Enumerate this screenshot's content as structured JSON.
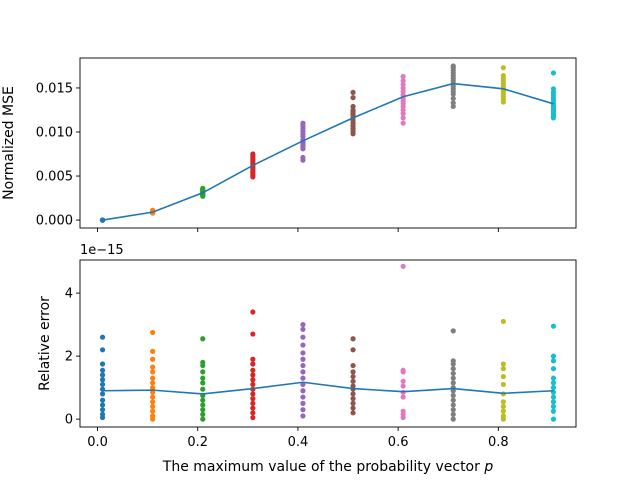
{
  "chart_data": [
    {
      "type": "scatter",
      "name": "top",
      "ylabel": "Normalized MSE",
      "xlabel": "",
      "xlim": [
        -0.035,
        0.955
      ],
      "ylim": [
        -0.0009,
        0.0184
      ],
      "yticks": [
        0.0,
        0.005,
        0.01,
        0.015
      ],
      "ytick_labels": [
        "0.000",
        "0.005",
        "0.010",
        "0.015"
      ],
      "xticks": [
        0.0,
        0.2,
        0.4,
        0.6,
        0.8
      ],
      "line": {
        "x": [
          0.01,
          0.11,
          0.21,
          0.31,
          0.41,
          0.51,
          0.61,
          0.71,
          0.81,
          0.91
        ],
        "y": [
          0.0,
          0.0009,
          0.0031,
          0.0062,
          0.009,
          0.0116,
          0.014,
          0.0155,
          0.0149,
          0.0132
        ]
      },
      "scatter_series": [
        {
          "x": 0.01,
          "color": "#1f77b4",
          "values": [
            0.0,
            0.0,
            0.0,
            0.0,
            0.0,
            0.0,
            0.0,
            0.0,
            0.0,
            0.0,
            0.0,
            0.0,
            0.0,
            0.0
          ]
        },
        {
          "x": 0.11,
          "color": "#ff7f0e",
          "values": [
            0.0008,
            0.0008,
            0.0009,
            0.0009,
            0.0009,
            0.0009,
            0.001,
            0.001,
            0.001,
            0.0011,
            0.0011
          ]
        },
        {
          "x": 0.21,
          "color": "#2ca02c",
          "values": [
            0.0027,
            0.0028,
            0.0029,
            0.003,
            0.003,
            0.0031,
            0.0031,
            0.0032,
            0.0033,
            0.0034,
            0.0035,
            0.0036
          ]
        },
        {
          "x": 0.31,
          "color": "#d62728",
          "values": [
            0.0049,
            0.0051,
            0.0053,
            0.0055,
            0.0057,
            0.0059,
            0.0061,
            0.0063,
            0.0065,
            0.0067,
            0.0069,
            0.0071,
            0.0073,
            0.0075
          ]
        },
        {
          "x": 0.41,
          "color": "#9467bd",
          "values": [
            0.0068,
            0.0071,
            0.0081,
            0.0083,
            0.0085,
            0.0087,
            0.0089,
            0.0091,
            0.0095,
            0.0098,
            0.0101,
            0.0104,
            0.0107,
            0.011
          ]
        },
        {
          "x": 0.51,
          "color": "#8c564b",
          "values": [
            0.0098,
            0.0101,
            0.0104,
            0.0107,
            0.011,
            0.0113,
            0.0116,
            0.0119,
            0.0121,
            0.0123,
            0.0125,
            0.0129,
            0.0139,
            0.0145
          ]
        },
        {
          "x": 0.61,
          "color": "#e377c2",
          "values": [
            0.011,
            0.0116,
            0.0121,
            0.0125,
            0.0129,
            0.0132,
            0.0135,
            0.0138,
            0.0142,
            0.0146,
            0.015,
            0.0154,
            0.0158,
            0.0163
          ]
        },
        {
          "x": 0.71,
          "color": "#7f7f7f",
          "values": [
            0.0129,
            0.0133,
            0.0138,
            0.0143,
            0.0146,
            0.0149,
            0.0152,
            0.0155,
            0.0158,
            0.0161,
            0.0164,
            0.0167,
            0.017,
            0.0173,
            0.0175
          ]
        },
        {
          "x": 0.81,
          "color": "#bcbd22",
          "values": [
            0.0134,
            0.0137,
            0.014,
            0.0143,
            0.0146,
            0.0149,
            0.0152,
            0.0155,
            0.0158,
            0.0161,
            0.0164,
            0.0173
          ]
        },
        {
          "x": 0.91,
          "color": "#17becf",
          "values": [
            0.0116,
            0.0118,
            0.012,
            0.0122,
            0.0124,
            0.0126,
            0.0128,
            0.013,
            0.0133,
            0.0136,
            0.0139,
            0.0142,
            0.0145,
            0.0149,
            0.0167
          ]
        }
      ]
    },
    {
      "type": "scatter",
      "name": "bottom",
      "ylabel": "Relative error",
      "xlabel": "The maximum value of the probability vector",
      "xlabel_var": "p",
      "offset_label": "1e−15",
      "xlim": [
        -0.035,
        0.955
      ],
      "ylim": [
        -0.25,
        5.05
      ],
      "yticks": [
        0,
        2,
        4
      ],
      "ytick_labels": [
        "0",
        "2",
        "4"
      ],
      "xticks": [
        0.0,
        0.2,
        0.4,
        0.6,
        0.8
      ],
      "xtick_labels": [
        "0.0",
        "0.2",
        "0.4",
        "0.6",
        "0.8"
      ],
      "line": {
        "x": [
          0.01,
          0.11,
          0.21,
          0.31,
          0.41,
          0.51,
          0.61,
          0.71,
          0.81,
          0.91
        ],
        "y": [
          0.9,
          0.92,
          0.8,
          0.97,
          1.17,
          0.97,
          0.87,
          0.97,
          0.82,
          0.9
        ]
      },
      "scatter_series": [
        {
          "x": 0.01,
          "color": "#1f77b4",
          "values": [
            0.05,
            0.15,
            0.3,
            0.45,
            0.6,
            0.8,
            0.95,
            1.1,
            1.25,
            1.4,
            1.55,
            1.75,
            2.2,
            2.6
          ]
        },
        {
          "x": 0.11,
          "color": "#ff7f0e",
          "values": [
            0.0,
            0.1,
            0.25,
            0.4,
            0.55,
            0.7,
            0.85,
            1.0,
            1.15,
            1.3,
            1.5,
            1.65,
            1.9,
            2.15,
            2.75
          ]
        },
        {
          "x": 0.21,
          "color": "#2ca02c",
          "values": [
            0.0,
            0.15,
            0.3,
            0.45,
            0.6,
            0.75,
            0.95,
            1.15,
            1.3,
            1.5,
            1.7,
            1.8,
            2.55
          ]
        },
        {
          "x": 0.31,
          "color": "#d62728",
          "values": [
            0.05,
            0.2,
            0.35,
            0.5,
            0.65,
            0.8,
            0.95,
            1.1,
            1.25,
            1.4,
            1.55,
            1.75,
            1.9,
            2.7,
            3.4
          ]
        },
        {
          "x": 0.41,
          "color": "#9467bd",
          "values": [
            0.1,
            0.3,
            0.5,
            0.7,
            0.9,
            1.1,
            1.3,
            1.5,
            1.7,
            1.9,
            2.1,
            2.35,
            2.6,
            2.85,
            3.0
          ]
        },
        {
          "x": 0.51,
          "color": "#8c564b",
          "values": [
            0.2,
            0.35,
            0.5,
            0.65,
            0.8,
            0.95,
            1.05,
            1.2,
            1.35,
            1.5,
            1.7,
            2.2,
            2.55
          ]
        },
        {
          "x": 0.61,
          "color": "#e377c2",
          "values": [
            0.05,
            0.15,
            0.25,
            0.7,
            0.85,
            1.05,
            1.2,
            1.5,
            1.55,
            4.85
          ]
        },
        {
          "x": 0.71,
          "color": "#7f7f7f",
          "values": [
            0.0,
            0.15,
            0.3,
            0.45,
            0.6,
            0.75,
            0.9,
            1.0,
            1.15,
            1.3,
            1.45,
            1.6,
            1.75,
            1.85,
            2.8
          ]
        },
        {
          "x": 0.81,
          "color": "#bcbd22",
          "values": [
            0.0,
            0.1,
            0.25,
            0.4,
            0.55,
            0.8,
            1.1,
            1.35,
            1.6,
            1.75,
            3.1
          ]
        },
        {
          "x": 0.91,
          "color": "#17becf",
          "values": [
            0.0,
            0.25,
            0.4,
            0.55,
            0.7,
            0.85,
            1.0,
            1.15,
            1.3,
            1.6,
            1.85,
            2.0,
            2.95
          ]
        }
      ]
    }
  ]
}
